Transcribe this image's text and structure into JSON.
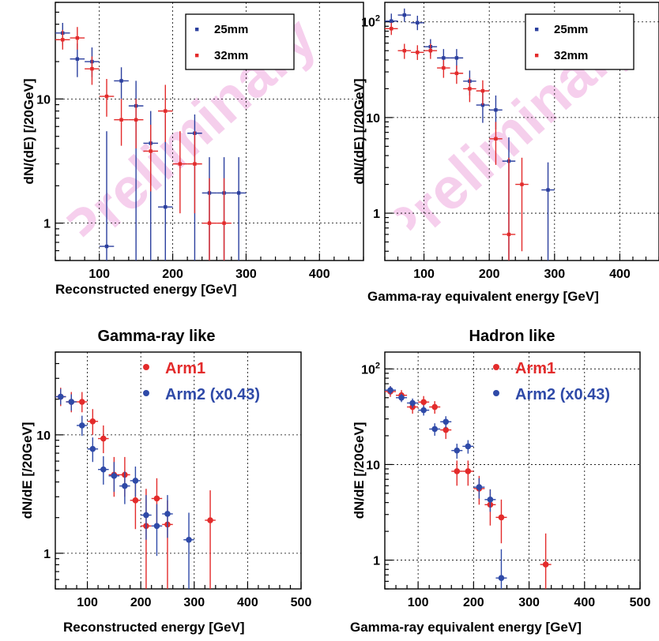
{
  "watermark": "Preliminary",
  "chart_data": [
    {
      "id": "top-left",
      "type": "scatter",
      "title": "",
      "xlabel": "Reconstructed energy [GeV]",
      "ylabel": "dN/(dE) [/20GeV]",
      "xlim": [
        40,
        460
      ],
      "ylim": [
        0.5,
        60
      ],
      "yscale": "log",
      "grid": true,
      "legend_placement": "top-right",
      "xticks": [
        "100",
        "200",
        "300",
        "400"
      ],
      "yticks": [
        "1",
        "10"
      ],
      "series": [
        {
          "name": "25mm",
          "color": "#2b3f9e",
          "marker": "square-small",
          "points": [
            {
              "x": 50,
              "y": 34,
              "err": [
                27,
                41
              ]
            },
            {
              "x": 70,
              "y": 21,
              "err": [
                15,
                28
              ]
            },
            {
              "x": 90,
              "y": 20,
              "err": [
                15,
                26
              ]
            },
            {
              "x": 110,
              "y": 0.65,
              "err": [
                0.1,
                5.5
              ]
            },
            {
              "x": 130,
              "y": 14,
              "err": [
                10,
                18
              ]
            },
            {
              "x": 150,
              "y": 8.8,
              "err": [
                0.1,
                14
              ]
            },
            {
              "x": 170,
              "y": 4.4,
              "err": [
                0.1,
                8
              ]
            },
            {
              "x": 190,
              "y": 1.35,
              "err": [
                0.1,
                7.5
              ]
            },
            {
              "x": 230,
              "y": 5.3,
              "err": [
                0.1,
                7.5
              ]
            },
            {
              "x": 250,
              "y": 1.75,
              "err": [
                0.1,
                3.4
              ]
            },
            {
              "x": 270,
              "y": 1.75,
              "err": [
                0.1,
                3.4
              ]
            },
            {
              "x": 290,
              "y": 1.75,
              "err": [
                0.1,
                3.4
              ]
            }
          ]
        },
        {
          "name": "32mm",
          "color": "#e32b2b",
          "marker": "square-small",
          "points": [
            {
              "x": 50,
              "y": 30,
              "err": [
                25,
                36
              ]
            },
            {
              "x": 70,
              "y": 31,
              "err": [
                25,
                38
              ]
            },
            {
              "x": 90,
              "y": 17.5,
              "err": [
                13,
                22
              ]
            },
            {
              "x": 110,
              "y": 10.5,
              "err": [
                7.2,
                14.5
              ]
            },
            {
              "x": 130,
              "y": 6.8,
              "err": [
                4.2,
                10
              ]
            },
            {
              "x": 150,
              "y": 6.8,
              "err": [
                4,
                10
              ]
            },
            {
              "x": 170,
              "y": 3.8,
              "err": [
                1.8,
                6.2
              ]
            },
            {
              "x": 190,
              "y": 8,
              "err": [
                4.5,
                13
              ]
            },
            {
              "x": 210,
              "y": 3,
              "err": [
                1.2,
                5.5
              ]
            },
            {
              "x": 230,
              "y": 3,
              "err": [
                1.2,
                5.5
              ]
            },
            {
              "x": 250,
              "y": 1,
              "err": [
                0.1,
                2.3
              ]
            },
            {
              "x": 270,
              "y": 1,
              "err": [
                0.1,
                2.3
              ]
            }
          ]
        }
      ]
    },
    {
      "id": "top-right",
      "type": "scatter",
      "title": "",
      "xlabel": "Gamma-ray equivalent energy [GeV]",
      "ylabel": "dN/(dE) [/20GeV]",
      "xlim": [
        40,
        460
      ],
      "ylim": [
        0.32,
        160
      ],
      "yscale": "log",
      "grid": true,
      "legend_placement": "top-right",
      "xticks": [
        "100",
        "200",
        "300",
        "400"
      ],
      "yticks": [
        "1",
        "10",
        "10^2"
      ],
      "series": [
        {
          "name": "25mm",
          "color": "#2b3f9e",
          "marker": "square-small",
          "points": [
            {
              "x": 50,
              "y": 102,
              "err": [
                85,
                122
              ]
            },
            {
              "x": 70,
              "y": 118,
              "err": [
                100,
                138
              ]
            },
            {
              "x": 90,
              "y": 98,
              "err": [
                82,
                116
              ]
            },
            {
              "x": 110,
              "y": 55,
              "err": [
                44,
                66
              ]
            },
            {
              "x": 130,
              "y": 42,
              "err": [
                32,
                52
              ]
            },
            {
              "x": 150,
              "y": 42,
              "err": [
                32,
                52
              ]
            },
            {
              "x": 170,
              "y": 24,
              "err": [
                17,
                31
              ]
            },
            {
              "x": 190,
              "y": 13.5,
              "err": [
                8.8,
                19
              ]
            },
            {
              "x": 210,
              "y": 12,
              "err": [
                7.5,
                17
              ]
            },
            {
              "x": 230,
              "y": 3.5,
              "err": [
                0.1,
                6.2
              ]
            },
            {
              "x": 290,
              "y": 1.75,
              "err": [
                0.1,
                3.4
              ]
            }
          ]
        },
        {
          "name": "32mm",
          "color": "#e32b2b",
          "marker": "square-small",
          "points": [
            {
              "x": 50,
              "y": 85,
              "err": [
                73,
                98
              ]
            },
            {
              "x": 70,
              "y": 50,
              "err": [
                41,
                59
              ]
            },
            {
              "x": 90,
              "y": 48,
              "err": [
                40,
                57
              ]
            },
            {
              "x": 110,
              "y": 50,
              "err": [
                41,
                59
              ]
            },
            {
              "x": 130,
              "y": 33,
              "err": [
                26,
                40
              ]
            },
            {
              "x": 150,
              "y": 29,
              "err": [
                22.5,
                35
              ]
            },
            {
              "x": 170,
              "y": 20,
              "err": [
                14.5,
                26
              ]
            },
            {
              "x": 190,
              "y": 19,
              "err": [
                13.5,
                24.5
              ]
            },
            {
              "x": 210,
              "y": 6,
              "err": [
                3.2,
                9
              ]
            },
            {
              "x": 230,
              "y": 0.6,
              "err": [
                0.1,
                3.8
              ]
            },
            {
              "x": 250,
              "y": 2,
              "err": [
                0.4,
                3.8
              ]
            }
          ]
        }
      ]
    },
    {
      "id": "bottom-left",
      "type": "scatter",
      "title": "Gamma-ray like",
      "xlabel": "Reconstructed energy [GeV]",
      "ylabel": "dN/dE [/20GeV]",
      "xlim": [
        40,
        500
      ],
      "ylim": [
        0.5,
        50
      ],
      "yscale": "log",
      "grid": true,
      "legend_placement": "top-right",
      "xticks": [
        "100",
        "200",
        "300",
        "400",
        "500"
      ],
      "yticks": [
        "1",
        "10"
      ],
      "series": [
        {
          "name": "Arm1",
          "color": "#e32b2b",
          "marker": "circle",
          "points": [
            {
              "x": 50,
              "y": 21,
              "err": [
                17.5,
                25
              ]
            },
            {
              "x": 70,
              "y": 19,
              "err": [
                15.5,
                23
              ]
            },
            {
              "x": 90,
              "y": 19,
              "err": [
                15.5,
                23
              ]
            },
            {
              "x": 110,
              "y": 13,
              "err": [
                10,
                16.5
              ]
            },
            {
              "x": 130,
              "y": 9.3,
              "err": [
                7,
                12
              ]
            },
            {
              "x": 150,
              "y": 4.6,
              "err": [
                3,
                6.5
              ]
            },
            {
              "x": 170,
              "y": 4.6,
              "err": [
                3,
                6.5
              ]
            },
            {
              "x": 190,
              "y": 2.8,
              "err": [
                1.6,
                4.3
              ]
            },
            {
              "x": 210,
              "y": 1.7,
              "err": [
                0.1,
                3.5
              ]
            },
            {
              "x": 230,
              "y": 2.9,
              "err": [
                1.7,
                4.3
              ]
            },
            {
              "x": 250,
              "y": 1.75,
              "err": [
                0.1,
                2.8
              ]
            },
            {
              "x": 330,
              "y": 1.9,
              "err": [
                0.1,
                3.4
              ]
            }
          ]
        },
        {
          "name": "Arm2 (x0.43)",
          "color": "#2f4aa8",
          "marker": "circle",
          "points": [
            {
              "x": 50,
              "y": 21,
              "err": [
                18,
                24.5
              ]
            },
            {
              "x": 70,
              "y": 19,
              "err": [
                16,
                22
              ]
            },
            {
              "x": 90,
              "y": 12,
              "err": [
                9.8,
                14.5
              ]
            },
            {
              "x": 110,
              "y": 7.6,
              "err": [
                5.9,
                9.5
              ]
            },
            {
              "x": 130,
              "y": 5.1,
              "err": [
                3.8,
                6.6
              ]
            },
            {
              "x": 150,
              "y": 4.5,
              "err": [
                3.3,
                5.9
              ]
            },
            {
              "x": 170,
              "y": 3.7,
              "err": [
                2.6,
                4.9
              ]
            },
            {
              "x": 190,
              "y": 4.1,
              "err": [
                3,
                5.4
              ]
            },
            {
              "x": 210,
              "y": 2.1,
              "err": [
                1.3,
                3.1
              ]
            },
            {
              "x": 230,
              "y": 1.7,
              "err": [
                0.95,
                2.6
              ]
            },
            {
              "x": 250,
              "y": 2.15,
              "err": [
                1.35,
                3.1
              ]
            },
            {
              "x": 290,
              "y": 1.3,
              "err": [
                0.1,
                2.2
              ]
            }
          ]
        }
      ]
    },
    {
      "id": "bottom-right",
      "type": "scatter",
      "title": "Hadron like",
      "xlabel": "Gamma-ray equivalent energy [GeV]",
      "ylabel": "dN/dE [/20GeV]",
      "xlim": [
        40,
        500
      ],
      "ylim": [
        0.5,
        150
      ],
      "yscale": "log",
      "grid": true,
      "legend_placement": "top-right",
      "xticks": [
        "100",
        "200",
        "300",
        "400",
        "500"
      ],
      "yticks": [
        "1",
        "10",
        "10^2"
      ],
      "series": [
        {
          "name": "Arm1",
          "color": "#e32b2b",
          "marker": "circle",
          "points": [
            {
              "x": 50,
              "y": 58,
              "err": [
                51,
                66
              ]
            },
            {
              "x": 70,
              "y": 53,
              "err": [
                46,
                60
              ]
            },
            {
              "x": 90,
              "y": 40,
              "err": [
                34,
                46
              ]
            },
            {
              "x": 110,
              "y": 45,
              "err": [
                39,
                52
              ]
            },
            {
              "x": 130,
              "y": 40,
              "err": [
                34,
                46
              ]
            },
            {
              "x": 150,
              "y": 23,
              "err": [
                18.5,
                27.5
              ]
            },
            {
              "x": 170,
              "y": 8.5,
              "err": [
                6,
                11
              ]
            },
            {
              "x": 190,
              "y": 8.5,
              "err": [
                6,
                11
              ]
            },
            {
              "x": 210,
              "y": 5.6,
              "err": [
                3.8,
                7.6
              ]
            },
            {
              "x": 230,
              "y": 3.8,
              "err": [
                2.3,
                5.5
              ]
            },
            {
              "x": 250,
              "y": 2.8,
              "err": [
                1.5,
                4.3
              ]
            },
            {
              "x": 330,
              "y": 0.9,
              "err": [
                0.1,
                1.9
              ]
            }
          ]
        },
        {
          "name": "Arm2 (x0.43)",
          "color": "#2f4aa8",
          "marker": "circle",
          "points": [
            {
              "x": 50,
              "y": 60,
              "err": [
                54,
                66
              ]
            },
            {
              "x": 70,
              "y": 50,
              "err": [
                45,
                55
              ]
            },
            {
              "x": 90,
              "y": 44,
              "err": [
                39,
                49
              ]
            },
            {
              "x": 110,
              "y": 37,
              "err": [
                32.5,
                41.5
              ]
            },
            {
              "x": 130,
              "y": 23.5,
              "err": [
                20,
                27
              ]
            },
            {
              "x": 150,
              "y": 28,
              "err": [
                24,
                32
              ]
            },
            {
              "x": 170,
              "y": 14,
              "err": [
                11.5,
                16.5
              ]
            },
            {
              "x": 190,
              "y": 15.5,
              "err": [
                13,
                18
              ]
            },
            {
              "x": 210,
              "y": 5.8,
              "err": [
                4.4,
                7.2
              ]
            },
            {
              "x": 230,
              "y": 4.3,
              "err": [
                3.2,
                5.5
              ]
            },
            {
              "x": 250,
              "y": 0.65,
              "err": [
                0.1,
                1.3
              ]
            }
          ]
        }
      ]
    }
  ]
}
